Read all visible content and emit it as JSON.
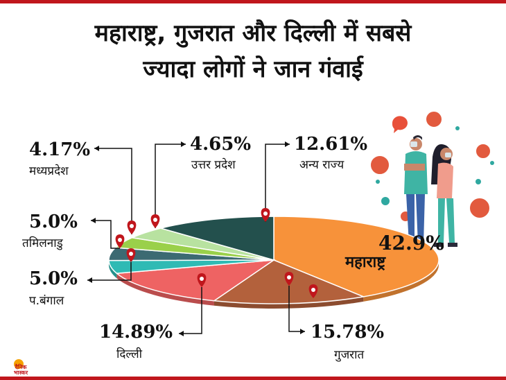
{
  "title": {
    "line1": "महाराष्ट्र, गुजरात और दिल्ली में सबसे",
    "line2": "ज्यादा लोगों ने जान गंवाई"
  },
  "logo": {
    "line1": "दैनिक",
    "line2": "भास्कर"
  },
  "colors": {
    "frame": "#c0161c",
    "leader": "#111111",
    "pin": "#c0161c"
  },
  "chart_data": {
    "type": "pie",
    "title": "महाराष्ट्र, गुजरात और दिल्ली में सबसे ज्यादा लोगों ने जान गंवाई",
    "unit": "%",
    "slices": [
      {
        "label": "महाराष्ट्र",
        "value": 42.9,
        "value_label": "42.9%",
        "color": "#f7923a"
      },
      {
        "label": "गुजरात",
        "value": 15.78,
        "value_label": "15.78%",
        "color": "#b3613c"
      },
      {
        "label": "दिल्ली",
        "value": 14.89,
        "value_label": "14.89%",
        "color": "#ee6363"
      },
      {
        "label": "प.बंगाल",
        "value": 5.0,
        "value_label": "5.0%",
        "color": "#2fbab4"
      },
      {
        "label": "तमिलनाडु",
        "value": 5.0,
        "value_label": "5.0%",
        "color": "#3c6a72"
      },
      {
        "label": "मध्यप्रदेश",
        "value": 4.17,
        "value_label": "4.17%",
        "color": "#9ad04a"
      },
      {
        "label": "उत्तर प्रदेश",
        "value": 4.65,
        "value_label": "4.65%",
        "color": "#b8e2a0"
      },
      {
        "label": "अन्य राज्य",
        "value": 12.61,
        "value_label": "12.61%",
        "color": "#23504d"
      }
    ]
  }
}
